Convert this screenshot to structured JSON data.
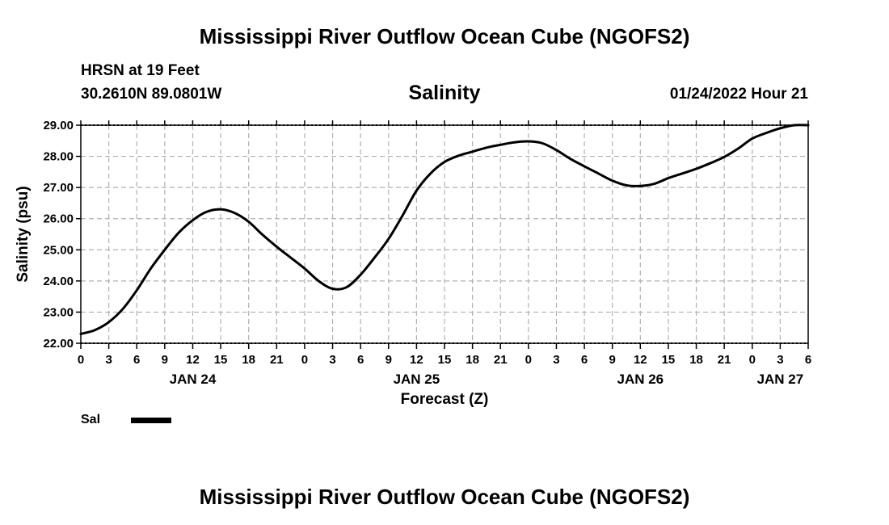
{
  "header": {
    "main_title": "Mississippi River Outflow Ocean Cube (NGOFS2)",
    "station": "HRSN at 19 Feet",
    "coords": "30.2610N  89.0801W",
    "plot_title": "Salinity",
    "run_time": "01/24/2022 Hour 21"
  },
  "legend": {
    "label": "Sal"
  },
  "footer": {
    "title": "Mississippi River Outflow Ocean Cube (NGOFS2)"
  },
  "colors": {
    "line": "#000000",
    "grid": "#b0b0b0",
    "axis": "#000000"
  },
  "chart_data": {
    "type": "line",
    "title": "Salinity",
    "xlabel": "Forecast (Z)",
    "ylabel": "Salinity (psu)",
    "ylim": [
      22.0,
      29.0
    ],
    "xlim": [
      0,
      78
    ],
    "x_unit": "hours from 2022-01-24 00Z",
    "yticks": [
      "22.00",
      "23.00",
      "24.00",
      "25.00",
      "26.00",
      "27.00",
      "28.00",
      "29.00"
    ],
    "ytick_values": [
      22,
      23,
      24,
      25,
      26,
      27,
      28,
      29
    ],
    "xtick_values": [
      0,
      3,
      6,
      9,
      12,
      15,
      18,
      21,
      24,
      27,
      30,
      33,
      36,
      39,
      42,
      45,
      48,
      51,
      54,
      57,
      60,
      63,
      66,
      69,
      72,
      75,
      78
    ],
    "xticks": [
      "0",
      "3",
      "6",
      "9",
      "12",
      "15",
      "18",
      "21",
      "0",
      "3",
      "6",
      "9",
      "12",
      "15",
      "18",
      "21",
      "0",
      "3",
      "6",
      "9",
      "12",
      "15",
      "18",
      "21",
      "0",
      "3",
      "6"
    ],
    "date_labels": [
      {
        "x": 12,
        "label": "JAN 24"
      },
      {
        "x": 36,
        "label": "JAN 25"
      },
      {
        "x": 60,
        "label": "JAN 26"
      },
      {
        "x": 75,
        "label": "JAN 27"
      }
    ],
    "series": [
      {
        "name": "Sal",
        "x": [
          0,
          1.5,
          3,
          4.5,
          6,
          7.5,
          9,
          10.5,
          12,
          13.5,
          15,
          16.5,
          18,
          19.5,
          21,
          22.5,
          24,
          25.5,
          27,
          28.5,
          30,
          31.5,
          33,
          34.5,
          36,
          37.5,
          39,
          40.5,
          42,
          43.5,
          45,
          46.5,
          48,
          49.5,
          51,
          52.5,
          54,
          55.5,
          57,
          58.5,
          60,
          61.5,
          63,
          64.5,
          66,
          67.5,
          69,
          70.5,
          72,
          73.5,
          75,
          76.5,
          78
        ],
        "values": [
          22.3,
          22.42,
          22.68,
          23.1,
          23.7,
          24.4,
          25.0,
          25.55,
          25.95,
          26.22,
          26.3,
          26.18,
          25.9,
          25.48,
          25.1,
          24.75,
          24.4,
          24.0,
          23.75,
          23.8,
          24.2,
          24.75,
          25.35,
          26.1,
          26.9,
          27.45,
          27.82,
          28.02,
          28.15,
          28.28,
          28.37,
          28.45,
          28.48,
          28.42,
          28.2,
          27.92,
          27.68,
          27.45,
          27.22,
          27.07,
          27.05,
          27.12,
          27.3,
          27.45,
          27.6,
          27.78,
          27.98,
          28.25,
          28.57,
          28.75,
          28.9,
          29.0,
          29.0
        ]
      }
    ]
  }
}
